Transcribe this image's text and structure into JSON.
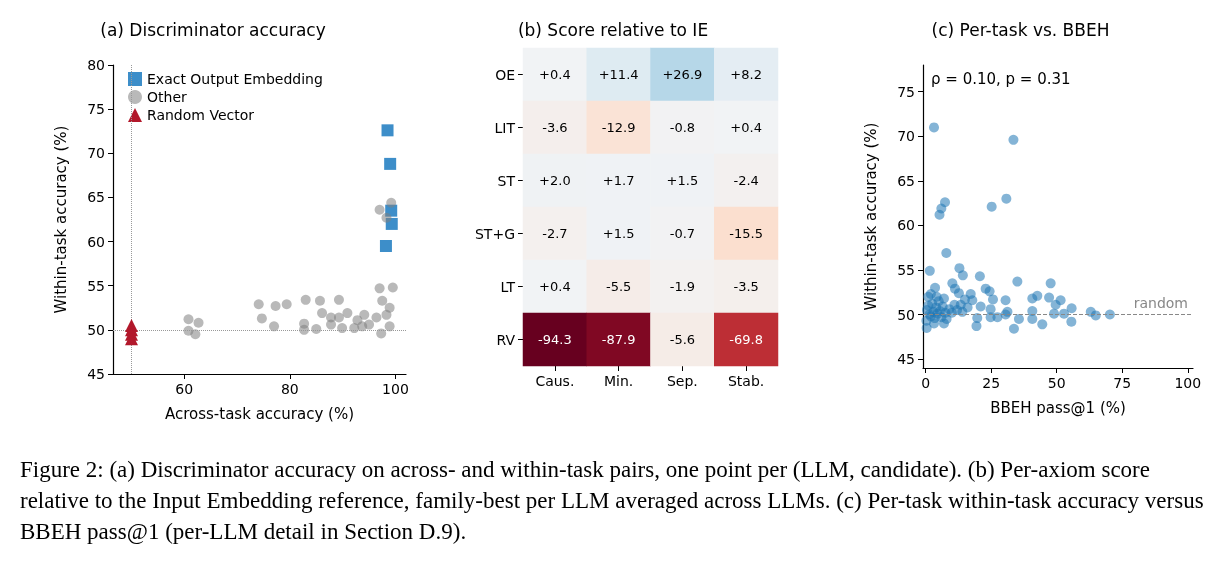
{
  "chart_data": [
    {
      "type": "scatter",
      "title": "(a) Discriminator accuracy",
      "xlabel": "Across-task accuracy (%)",
      "ylabel": "Within-task accuracy (%)",
      "xlim": [
        46.5,
        102
      ],
      "ylim": [
        45,
        80
      ],
      "xticks": [
        60,
        80,
        100
      ],
      "yticks": [
        45,
        50,
        55,
        60,
        65,
        70,
        75,
        80
      ],
      "grid": false,
      "legend": "top left",
      "annotations": [
        "Figure 2: (a) Discriminator accuracy on across- and within-task pairs, one point per (LLM, candidate). (b) Per-axiom score relative to the Input Embedding reference, family-best per LLM averaged across LLMs. (c) Per-task within-task accuracy versus BBEH pass@1 (per-LLM detail in Section D.9)."
      ],
      "ref_lines": [
        {
          "axis": "x",
          "value": 50,
          "color": "#999999",
          "line_style": "dotted"
        },
        {
          "axis": "y",
          "value": 50,
          "color": "#999999",
          "line_style": "dotted"
        }
      ],
      "series": [
        {
          "name": "Exact Output Embedding",
          "color": "#3d8ec9",
          "marker": "square",
          "x": [
            98.5,
            99,
            99.2,
            99.3,
            98.2
          ],
          "values": [
            72.6,
            68.8,
            63.5,
            62.0,
            59.5
          ]
        },
        {
          "name": "Other",
          "color": "#808080",
          "marker": "circle",
          "x": [
            60.8,
            62.7,
            60.8,
            62.1,
            74.1,
            74.7,
            77.3,
            79.4,
            77,
            83,
            85.7,
            86.1,
            89.3,
            82.7,
            82.7,
            85,
            87.8,
            89.3,
            87.8,
            90.9,
            91.2,
            92.8,
            94.1,
            95,
            96.4,
            97.3,
            97,
            98.9,
            99.5,
            97.5,
            98.9,
            98.3,
            98.9,
            97,
            99.2,
            98.3,
            92.2,
            93.7,
            89.9
          ],
          "values": [
            51.2,
            50.8,
            49.9,
            49.5,
            52.9,
            51.3,
            52.7,
            52.9,
            50.4,
            53.4,
            53.3,
            51.9,
            53.4,
            50.7,
            50,
            50.1,
            51.4,
            51.4,
            50.6,
            51.9,
            null,
            51.1,
            51.7,
            50.6,
            51.4,
            49.6,
            54.7,
            null,
            54.8,
            53.3,
            52.5,
            51.7,
            50.4,
            63.6,
            64.4,
            62.7,
            50.2,
            50.4,
            50.2
          ]
        },
        {
          "name": "Random Vector",
          "color": "#b2182b",
          "marker": "triangle",
          "x": [
            50,
            50,
            50,
            50
          ],
          "values": [
            50.5,
            50,
            49.5,
            49
          ]
        }
      ]
    },
    {
      "type": "heatmap",
      "title": "(b) Score relative to IE",
      "categories": [
        "Caus.",
        "Min.",
        "Sep.",
        "Stab."
      ],
      "y_categories": [
        "OE",
        "LIT",
        "ST",
        "ST+G",
        "LT",
        "RV"
      ],
      "cells": [
        [
          0.4,
          11.4,
          26.9,
          8.2
        ],
        [
          -3.6,
          -12.9,
          -0.8,
          0.4
        ],
        [
          2.0,
          1.7,
          1.5,
          -2.4
        ],
        [
          -2.7,
          1.5,
          -0.7,
          -15.5
        ],
        [
          0.4,
          -5.5,
          -1.9,
          -3.5
        ],
        [
          -94.3,
          -87.9,
          -5.6,
          -69.8
        ]
      ],
      "cell_labels": [
        [
          "+0.4",
          "+11.4",
          "+26.9",
          "+8.2"
        ],
        [
          "-3.6",
          "-12.9",
          "-0.8",
          "+0.4"
        ],
        [
          "+2.0",
          "+1.7",
          "+1.5",
          "-2.4"
        ],
        [
          "-2.7",
          "+1.5",
          "-0.7",
          "-15.5"
        ],
        [
          "+0.4",
          "-5.5",
          "-1.9",
          "-3.5"
        ],
        [
          "-94.3",
          "-87.9",
          "-5.6",
          "-69.8"
        ]
      ]
    },
    {
      "type": "scatter",
      "title": "(c) Per-task vs. BBEH",
      "xlabel": "BBEH pass@1 (%)",
      "ylabel": "Within-task accuracy (%)",
      "xlim": [
        -1,
        102
      ],
      "ylim": [
        44,
        78
      ],
      "xticks": [
        0,
        25,
        50,
        75,
        100
      ],
      "yticks": [
        45,
        50,
        55,
        60,
        65,
        70,
        75
      ],
      "grid": false,
      "annotations": [
        "ρ = 0.10, p = 0.31"
      ],
      "ref_lines": [
        {
          "axis": "y",
          "value": 50,
          "label": "random",
          "color": "#888888",
          "line_style": "dashed"
        }
      ],
      "series": [
        {
          "color": "#1f77b4",
          "marker": "circle",
          "x": [
            3.2,
            33.5,
            7.4,
            6.0,
            5.3,
            25.2,
            30.8,
            7.9,
            1.6,
            12.9,
            14.2,
            20.7,
            35,
            47.7,
            10.2,
            3.6,
            11.2,
            12.7,
            17.2,
            22.9,
            24.4,
            25.7,
            30.5,
            4.2,
            40.7,
            42.6,
            47.1,
            51.5,
            49.6,
            55.7,
            13.4,
            17.8,
            21,
            24.8,
            31.2,
            40.7,
            49,
            52.8,
            63,
            64.9,
            70.3,
            19.7,
            24.8,
            27.4,
            30.5,
            35.6,
            40.7,
            44.5,
            55.6,
            33.7,
            19.4,
            0.4,
            7.0,
            3.2,
            0.5,
            1,
            1.5,
            2,
            2.5,
            3,
            3.5,
            4,
            4.5,
            5,
            5.5,
            6,
            6.5,
            7,
            7.5,
            8,
            9,
            10,
            11,
            12,
            14,
            15,
            16,
            1,
            2,
            0.3
          ],
          "values": [
            71.0,
            69.6,
            62.6,
            61.9,
            61.2,
            62.1,
            63.0,
            56.9,
            54.9,
            55.2,
            54.4,
            54.3,
            53.7,
            53.5,
            53.5,
            53.0,
            52.9,
            52.4,
            52.3,
            52.9,
            52.6,
            51.7,
            51.6,
            52.0,
            51.8,
            52.1,
            51.9,
            51.6,
            51.1,
            50.7,
            51.1,
            51.6,
            50.9,
            50.6,
            50.3,
            50.4,
            50.1,
            50.1,
            50.3,
            49.9,
            50.0,
            49.6,
            49.7,
            49.7,
            50.0,
            49.5,
            49.5,
            48.9,
            49.2,
            48.4,
            48.7,
            48.5,
            49.0,
            49.0,
            50.5,
            51,
            50,
            49.8,
            51.2,
            50.3,
            49.6,
            50.8,
            50.1,
            51.5,
            50.4,
            49.7,
            50.9,
            51.8,
            50.2,
            49.5,
            50.6,
            50.2,
            51.1,
            50.5,
            50.3,
            51.7,
            50.8,
            52,
            52.3,
            49.3
          ]
        }
      ]
    }
  ]
}
